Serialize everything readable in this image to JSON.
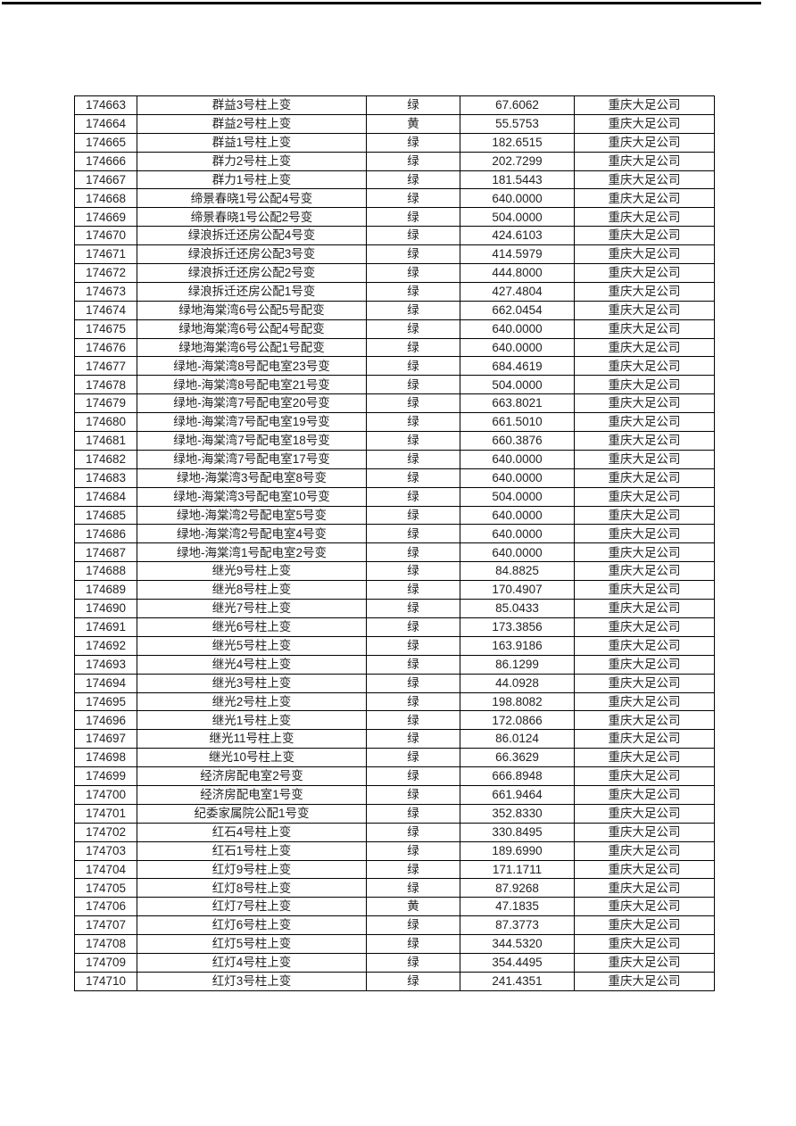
{
  "page": {
    "background_color": "#ffffff",
    "rule_color": "#000000",
    "table_border_color": "#000000",
    "text_color": "#222222"
  },
  "table": {
    "columns": [
      "id",
      "name",
      "status",
      "value",
      "company"
    ],
    "status_values_seen": [
      "绿",
      "黄"
    ],
    "rows": [
      [
        "174663",
        "群益3号柱上变",
        "绿",
        "67.6062",
        "重庆大足公司"
      ],
      [
        "174664",
        "群益2号柱上变",
        "黄",
        "55.5753",
        "重庆大足公司"
      ],
      [
        "174665",
        "群益1号柱上变",
        "绿",
        "182.6515",
        "重庆大足公司"
      ],
      [
        "174666",
        "群力2号柱上变",
        "绿",
        "202.7299",
        "重庆大足公司"
      ],
      [
        "174667",
        "群力1号柱上变",
        "绿",
        "181.5443",
        "重庆大足公司"
      ],
      [
        "174668",
        "缔景春晓1号公配4号变",
        "绿",
        "640.0000",
        "重庆大足公司"
      ],
      [
        "174669",
        "缔景春晓1号公配2号变",
        "绿",
        "504.0000",
        "重庆大足公司"
      ],
      [
        "174670",
        "绿浪拆迁还房公配4号变",
        "绿",
        "424.6103",
        "重庆大足公司"
      ],
      [
        "174671",
        "绿浪拆迁还房公配3号变",
        "绿",
        "414.5979",
        "重庆大足公司"
      ],
      [
        "174672",
        "绿浪拆迁还房公配2号变",
        "绿",
        "444.8000",
        "重庆大足公司"
      ],
      [
        "174673",
        "绿浪拆迁还房公配1号变",
        "绿",
        "427.4804",
        "重庆大足公司"
      ],
      [
        "174674",
        "绿地海棠湾6号公配5号配变",
        "绿",
        "662.0454",
        "重庆大足公司"
      ],
      [
        "174675",
        "绿地海棠湾6号公配4号配变",
        "绿",
        "640.0000",
        "重庆大足公司"
      ],
      [
        "174676",
        "绿地海棠湾6号公配1号配变",
        "绿",
        "640.0000",
        "重庆大足公司"
      ],
      [
        "174677",
        "绿地-海棠湾8号配电室23号变",
        "绿",
        "684.4619",
        "重庆大足公司"
      ],
      [
        "174678",
        "绿地-海棠湾8号配电室21号变",
        "绿",
        "504.0000",
        "重庆大足公司"
      ],
      [
        "174679",
        "绿地-海棠湾7号配电室20号变",
        "绿",
        "663.8021",
        "重庆大足公司"
      ],
      [
        "174680",
        "绿地-海棠湾7号配电室19号变",
        "绿",
        "661.5010",
        "重庆大足公司"
      ],
      [
        "174681",
        "绿地-海棠湾7号配电室18号变",
        "绿",
        "660.3876",
        "重庆大足公司"
      ],
      [
        "174682",
        "绿地-海棠湾7号配电室17号变",
        "绿",
        "640.0000",
        "重庆大足公司"
      ],
      [
        "174683",
        "绿地-海棠湾3号配电室8号变",
        "绿",
        "640.0000",
        "重庆大足公司"
      ],
      [
        "174684",
        "绿地-海棠湾3号配电室10号变",
        "绿",
        "504.0000",
        "重庆大足公司"
      ],
      [
        "174685",
        "绿地-海棠湾2号配电室5号变",
        "绿",
        "640.0000",
        "重庆大足公司"
      ],
      [
        "174686",
        "绿地-海棠湾2号配电室4号变",
        "绿",
        "640.0000",
        "重庆大足公司"
      ],
      [
        "174687",
        "绿地-海棠湾1号配电室2号变",
        "绿",
        "640.0000",
        "重庆大足公司"
      ],
      [
        "174688",
        "继光9号柱上变",
        "绿",
        "84.8825",
        "重庆大足公司"
      ],
      [
        "174689",
        "继光8号柱上变",
        "绿",
        "170.4907",
        "重庆大足公司"
      ],
      [
        "174690",
        "继光7号柱上变",
        "绿",
        "85.0433",
        "重庆大足公司"
      ],
      [
        "174691",
        "继光6号柱上变",
        "绿",
        "173.3856",
        "重庆大足公司"
      ],
      [
        "174692",
        "继光5号柱上变",
        "绿",
        "163.9186",
        "重庆大足公司"
      ],
      [
        "174693",
        "继光4号柱上变",
        "绿",
        "86.1299",
        "重庆大足公司"
      ],
      [
        "174694",
        "继光3号柱上变",
        "绿",
        "44.0928",
        "重庆大足公司"
      ],
      [
        "174695",
        "继光2号柱上变",
        "绿",
        "198.8082",
        "重庆大足公司"
      ],
      [
        "174696",
        "继光1号柱上变",
        "绿",
        "172.0866",
        "重庆大足公司"
      ],
      [
        "174697",
        "继光11号柱上变",
        "绿",
        "86.0124",
        "重庆大足公司"
      ],
      [
        "174698",
        "继光10号柱上变",
        "绿",
        "66.3629",
        "重庆大足公司"
      ],
      [
        "174699",
        "经济房配电室2号变",
        "绿",
        "666.8948",
        "重庆大足公司"
      ],
      [
        "174700",
        "经济房配电室1号变",
        "绿",
        "661.9464",
        "重庆大足公司"
      ],
      [
        "174701",
        "纪委家属院公配1号变",
        "绿",
        "352.8330",
        "重庆大足公司"
      ],
      [
        "174702",
        "红石4号柱上变",
        "绿",
        "330.8495",
        "重庆大足公司"
      ],
      [
        "174703",
        "红石1号柱上变",
        "绿",
        "189.6990",
        "重庆大足公司"
      ],
      [
        "174704",
        "红灯9号柱上变",
        "绿",
        "171.1711",
        "重庆大足公司"
      ],
      [
        "174705",
        "红灯8号柱上变",
        "绿",
        "87.9268",
        "重庆大足公司"
      ],
      [
        "174706",
        "红灯7号柱上变",
        "黄",
        "47.1835",
        "重庆大足公司"
      ],
      [
        "174707",
        "红灯6号柱上变",
        "绿",
        "87.3773",
        "重庆大足公司"
      ],
      [
        "174708",
        "红灯5号柱上变",
        "绿",
        "344.5320",
        "重庆大足公司"
      ],
      [
        "174709",
        "红灯4号柱上变",
        "绿",
        "354.4495",
        "重庆大足公司"
      ],
      [
        "174710",
        "红灯3号柱上变",
        "绿",
        "241.4351",
        "重庆大足公司"
      ]
    ]
  }
}
